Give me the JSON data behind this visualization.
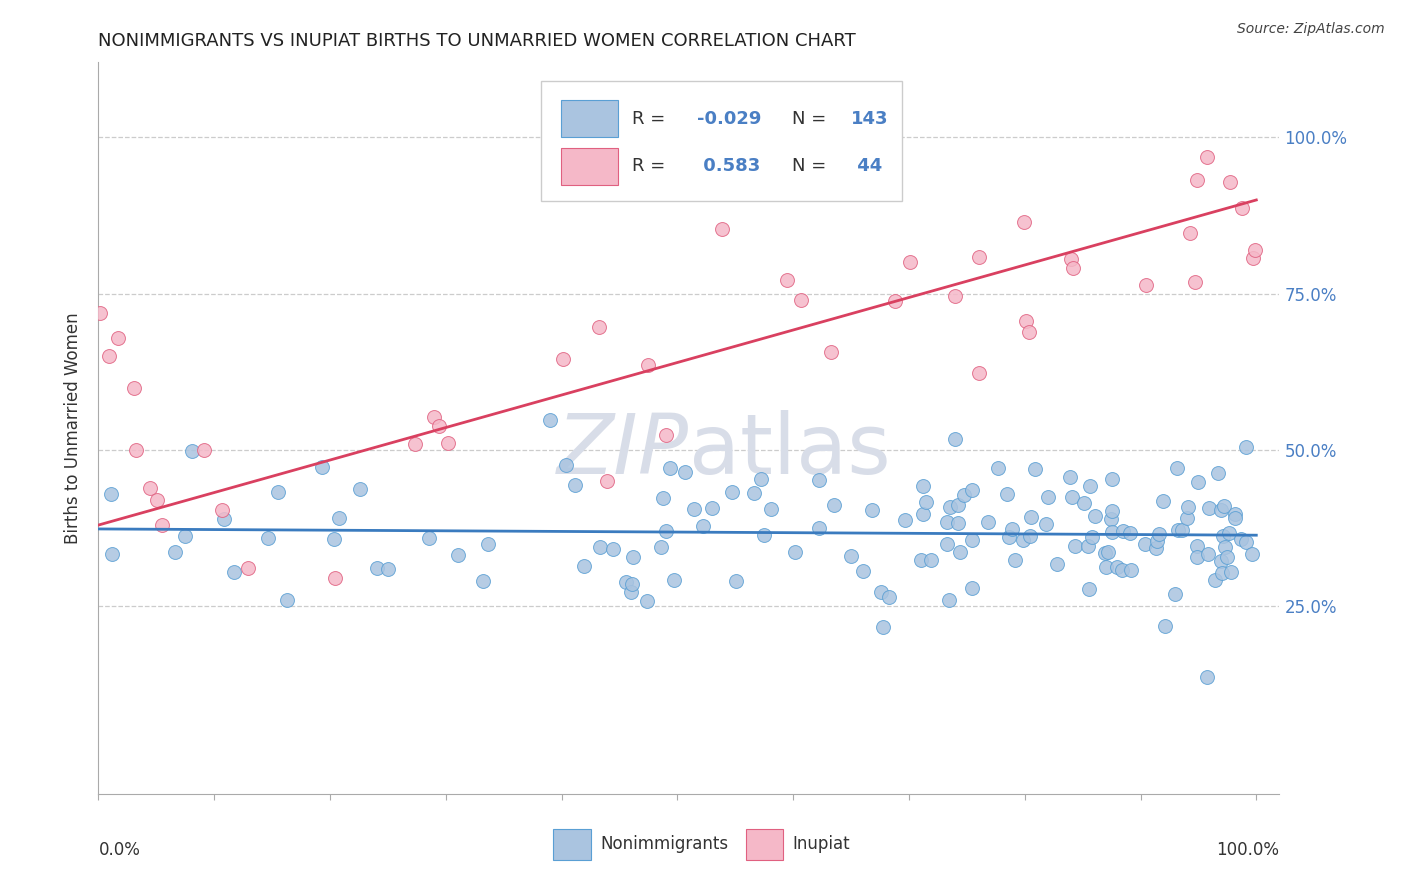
{
  "title": "NONIMMIGRANTS VS INUPIAT BIRTHS TO UNMARRIED WOMEN CORRELATION CHART",
  "source": "Source: ZipAtlas.com",
  "ylabel": "Births to Unmarried Women",
  "ytick_labels": [
    "25.0%",
    "50.0%",
    "75.0%",
    "100.0%"
  ],
  "ytick_vals": [
    0.25,
    0.5,
    0.75,
    1.0
  ],
  "nonimmigrants_color": "#aac4e0",
  "nonimmigrants_edge": "#5a9fd4",
  "inupiat_color": "#f5b8c8",
  "inupiat_edge": "#e06080",
  "trend_blue_color": "#3a7bbf",
  "trend_pink_color": "#d94060",
  "background_color": "#ffffff",
  "watermark_color": "#d8dde8",
  "grid_color": "#cccccc",
  "ytick_color": "#4a7fc4",
  "title_color": "#222222",
  "source_color": "#444444",
  "legend_R_color": "#4a7fc4",
  "legend_border": "#cccccc"
}
